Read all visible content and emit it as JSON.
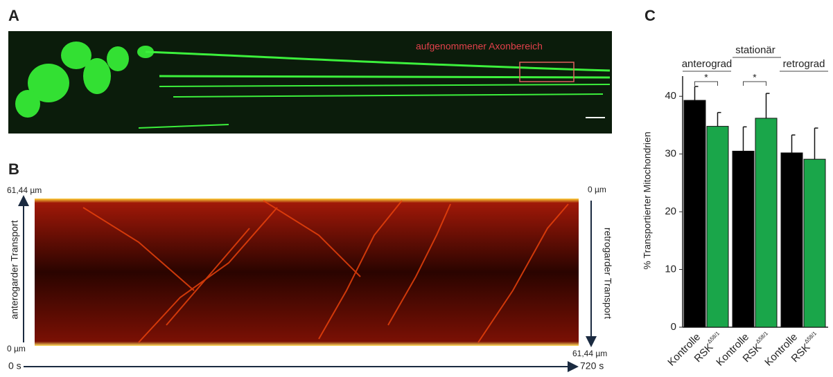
{
  "panels": {
    "a": {
      "label": "A",
      "annotation": "aufgenommener Axonbereich"
    },
    "b": {
      "label": "B",
      "left_top": "61,44 µm",
      "left_bottom": "0 µm",
      "left_axis": "anterogarder Transport",
      "right_top": "0 µm",
      "right_bottom": "61,44 µm",
      "right_axis": "retrogarder Transport",
      "time_start": "0 s",
      "time_end": "720 s"
    },
    "c": {
      "label": "C"
    }
  },
  "chart_data": {
    "type": "bar",
    "y_label": "% Transportierter Mitochondrien",
    "categories": [
      "anterograd",
      "stationär",
      "retrograd"
    ],
    "series": [
      {
        "name": "Kontrolle",
        "color": "#000000",
        "values": [
          39.3,
          30.5,
          30.2
        ],
        "errors": [
          2.4,
          4.2,
          3.1
        ]
      },
      {
        "name": "RSK",
        "superscript": "Δ58/1",
        "color": "#1aa64a",
        "values": [
          34.8,
          36.2,
          29.1
        ],
        "errors": [
          2.4,
          4.3,
          5.4
        ]
      }
    ],
    "significance": [
      "*",
      "*",
      null
    ],
    "ylim": [
      0,
      43.5
    ],
    "yticks": [
      0,
      10,
      20,
      30,
      40
    ]
  }
}
